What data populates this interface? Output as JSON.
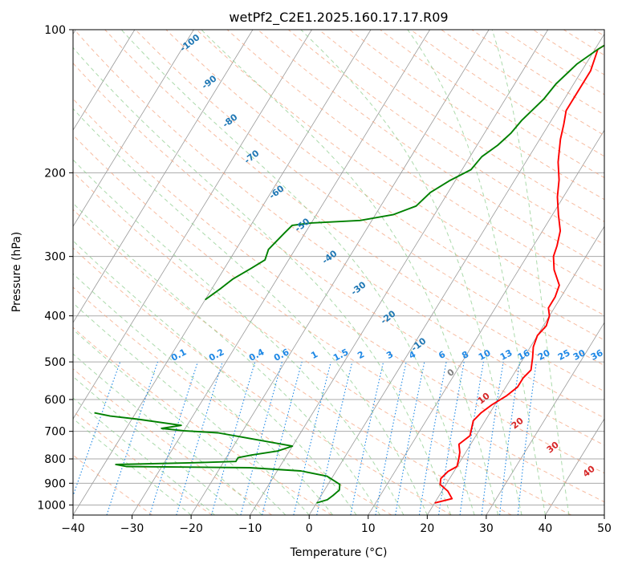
{
  "chart_data": {
    "type": "line",
    "title": "wetPf2_C2E1.2025.160.17.17.R09",
    "xlabel": "Temperature (°C)",
    "ylabel": "Pressure (hPa)",
    "xlim": [
      -40,
      50
    ],
    "ylim": [
      1050,
      100
    ],
    "y_scale": "log",
    "grid": true,
    "x_ticks": [
      "−40",
      "−30",
      "−20",
      "−10",
      "0",
      "10",
      "20",
      "30",
      "40",
      "50"
    ],
    "x_tick_values": [
      -40,
      -30,
      -20,
      -10,
      0,
      10,
      20,
      30,
      40,
      50
    ],
    "y_ticks": [
      "100",
      "200",
      "300",
      "400",
      "500",
      "600",
      "700",
      "800",
      "900",
      "1000"
    ],
    "y_tick_values": [
      100,
      200,
      300,
      400,
      500,
      600,
      700,
      800,
      900,
      1000
    ],
    "series": [
      {
        "color": "#ff0000",
        "points": [
          [
            20.0,
            990
          ],
          [
            22.5,
            970
          ],
          [
            21.0,
            935
          ],
          [
            19.0,
            905
          ],
          [
            18.5,
            880
          ],
          [
            19.0,
            850
          ],
          [
            20.0,
            830
          ],
          [
            19.5,
            800
          ],
          [
            19.0,
            775
          ],
          [
            18.0,
            745
          ],
          [
            19.0,
            715
          ],
          [
            18.5,
            690
          ],
          [
            18.0,
            665
          ],
          [
            18.5,
            640
          ],
          [
            19.5,
            615
          ],
          [
            21.0,
            590
          ],
          [
            22.0,
            565
          ],
          [
            22.0,
            540
          ],
          [
            22.5,
            520
          ],
          [
            21.5,
            490
          ],
          [
            20.5,
            465
          ],
          [
            20.0,
            440
          ],
          [
            20.5,
            420
          ],
          [
            20.0,
            400
          ],
          [
            19.0,
            385
          ],
          [
            19.0,
            365
          ],
          [
            18.5,
            345
          ],
          [
            16.0,
            320
          ],
          [
            14.5,
            300
          ],
          [
            14.0,
            285
          ],
          [
            13.0,
            265
          ],
          [
            11.0,
            245
          ],
          [
            9.0,
            225
          ],
          [
            7.5,
            207
          ],
          [
            5.5,
            190
          ],
          [
            3.5,
            170
          ],
          [
            2.5,
            158
          ],
          [
            1.5,
            148
          ],
          [
            1.5,
            135
          ],
          [
            1.5,
            122
          ],
          [
            0.5,
            110
          ],
          [
            2.5,
            104
          ],
          [
            5.5,
            100
          ]
        ]
      },
      {
        "color": "#008000",
        "points": [
          [
            0.0,
            990
          ],
          [
            1.5,
            975
          ],
          [
            2.0,
            955
          ],
          [
            2.5,
            930
          ],
          [
            2.0,
            905
          ],
          [
            -1.0,
            870
          ],
          [
            -6.0,
            848
          ],
          [
            -15.0,
            835
          ],
          [
            -36.0,
            830
          ],
          [
            -38.0,
            822
          ],
          [
            -25.0,
            815
          ],
          [
            -18.0,
            810
          ],
          [
            -18.0,
            795
          ],
          [
            -16.0,
            785
          ],
          [
            -12.0,
            770
          ],
          [
            -10.0,
            752
          ],
          [
            -14.0,
            738
          ],
          [
            -20.0,
            718
          ],
          [
            -24.0,
            705
          ],
          [
            -30.0,
            698
          ],
          [
            -34.0,
            690
          ],
          [
            -31.0,
            680
          ],
          [
            -39.0,
            660
          ],
          [
            -44.0,
            650
          ],
          [
            -47.0,
            640
          ]
        ],
        "points_upper": [
          [
            -40.0,
            370
          ],
          [
            -38.5,
            350
          ],
          [
            -37.5,
            335
          ],
          [
            -35.5,
            318
          ],
          [
            -34.0,
            305
          ],
          [
            -34.5,
            290
          ],
          [
            -33.5,
            268
          ],
          [
            -33.0,
            258
          ],
          [
            -30.0,
            255
          ],
          [
            -22.0,
            252
          ],
          [
            -17.0,
            245
          ],
          [
            -14.0,
            235
          ],
          [
            -13.0,
            220
          ],
          [
            -11.0,
            208
          ],
          [
            -8.5,
            197
          ],
          [
            -8.0,
            185
          ],
          [
            -6.5,
            175
          ],
          [
            -5.5,
            165
          ],
          [
            -5.0,
            155
          ],
          [
            -3.5,
            140
          ],
          [
            -3.0,
            130
          ],
          [
            -1.5,
            118
          ],
          [
            0.5,
            110
          ],
          [
            2.5,
            104
          ],
          [
            3.5,
            100
          ]
        ]
      }
    ],
    "dry_adiabat_labels": [
      "-100",
      "-90",
      "-80",
      "-70",
      "-60",
      "-50",
      "-40",
      "-30",
      "-20",
      "-10",
      "0",
      "10",
      "20",
      "30",
      "40"
    ],
    "mixing_ratio_labels": [
      "0.1",
      "0.2",
      "0.4",
      "0.6",
      "1",
      "1.5",
      "2",
      "3",
      "4",
      "6",
      "8",
      "10",
      "13",
      "16",
      "20",
      "25",
      "30",
      "36"
    ],
    "mixing_ratio_values": [
      0.1,
      0.2,
      0.4,
      0.6,
      1,
      1.5,
      2,
      3,
      4,
      6,
      8,
      10,
      13,
      16,
      20,
      25,
      30,
      36
    ],
    "colors": {
      "temperature": "#ff0000",
      "dewpoint": "#008000",
      "isotherm": "#999999",
      "isobar": "#aaaaaa",
      "dry_adiabat": "#f4a582",
      "moist_adiabat": "#8fce8f",
      "mixing_ratio": "#1e88e5",
      "adiabat_label_blue": "#1f77b4",
      "adiabat_label_gray": "#808080",
      "adiabat_label_red": "#d62728"
    }
  }
}
